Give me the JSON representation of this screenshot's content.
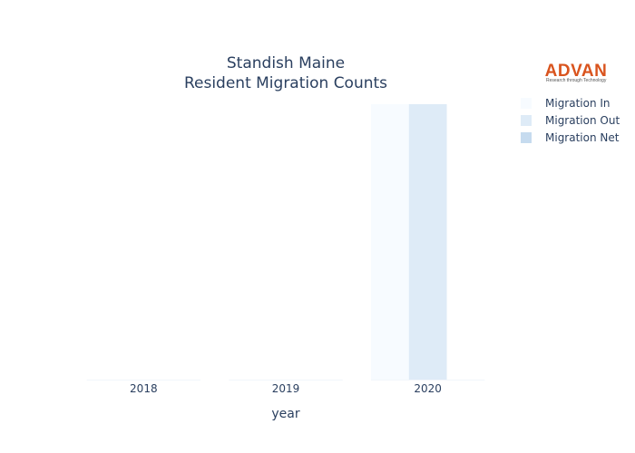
{
  "chart_data": {
    "type": "bar",
    "title_line1": "Standish Maine",
    "title_line2": "Resident Migration Counts",
    "xlabel": "year",
    "ylabel": "",
    "categories": [
      "2018",
      "2019",
      "2020"
    ],
    "series": [
      {
        "name": "Migration In",
        "color": "#f7fbff",
        "values": [
          0,
          0,
          1
        ]
      },
      {
        "name": "Migration Out",
        "color": "#deebf7",
        "values": [
          0,
          0,
          1
        ]
      },
      {
        "name": "Migration Net",
        "color": "#c6dbef",
        "values": [
          0,
          0,
          0
        ]
      }
    ],
    "ylim": [
      0,
      1
    ],
    "grid": false,
    "legend_position": "top-right"
  },
  "logo": {
    "name": "ADVAN",
    "tagline": "Research through Technology"
  }
}
